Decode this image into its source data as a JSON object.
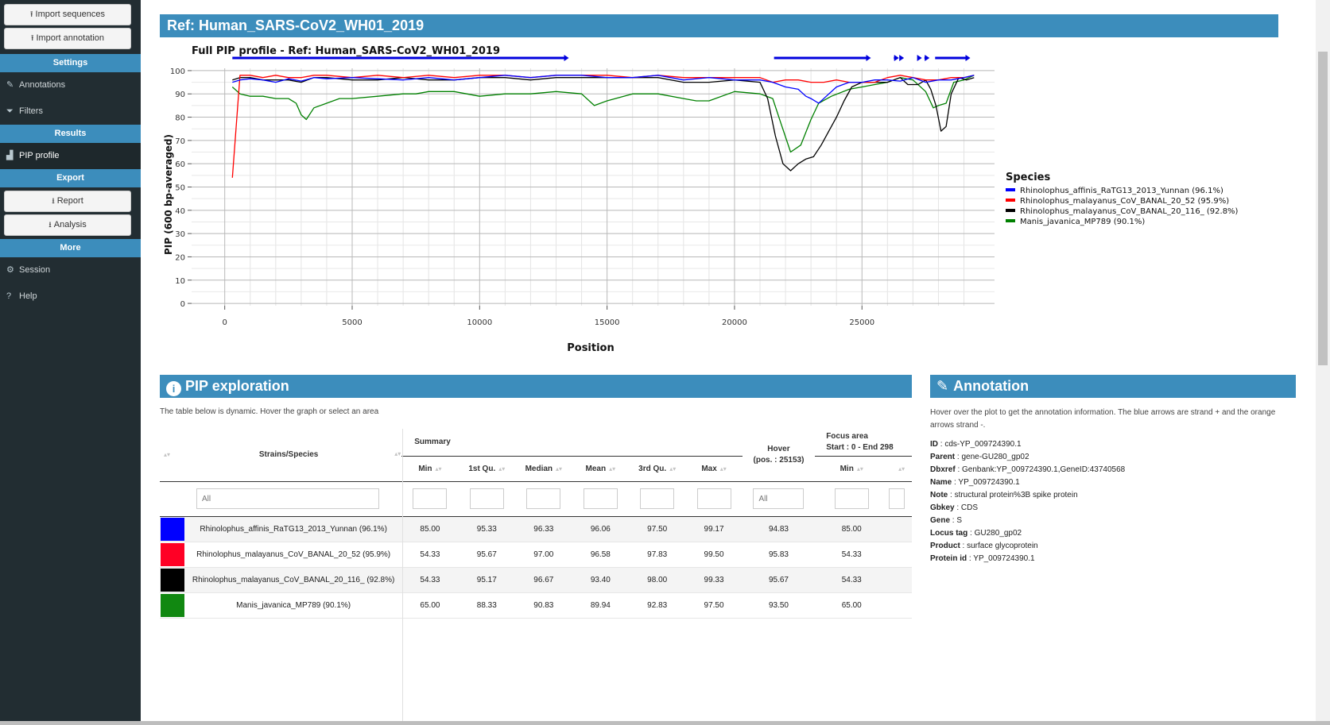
{
  "sidebar": {
    "import_sequences": "Import sequences",
    "import_annotation": "Import annotation",
    "settings_header": "Settings",
    "annotations": "Annotations",
    "filters": "Filters",
    "results_header": "Results",
    "pip_profile": "PIP profile",
    "export_header": "Export",
    "report": "Report",
    "analysis": "Analysis",
    "more_header": "More",
    "session": "Session",
    "help": "Help"
  },
  "ref_title": "Ref: Human_SARS-CoV2_WH01_2019",
  "chart_data": {
    "type": "line",
    "title": "Full PIP profile - Ref: Human_SARS-CoV2_WH01_2019",
    "xlabel": "Position",
    "ylabel": "PIP (600 bp-averaged)",
    "xlim": [
      -1300,
      30200
    ],
    "ylim": [
      -1,
      101
    ],
    "xticks": [
      0,
      5000,
      10000,
      15000,
      20000,
      25000
    ],
    "yticks": [
      0,
      10,
      20,
      30,
      40,
      50,
      60,
      70,
      80,
      90,
      100
    ],
    "grid": true,
    "legend_title": "Species",
    "legend_position": "right",
    "annotation_arrows": [
      [
        300,
        13500
      ],
      [
        21550,
        25350
      ],
      [
        26250,
        26450
      ],
      [
        26550,
        26650
      ],
      [
        27180,
        27350
      ],
      [
        27450,
        27650
      ],
      [
        27870,
        29250
      ]
    ],
    "series": [
      {
        "name": "Rhinolophus_affinis_RaTG13_2013_Yunnan (96.1%)",
        "color": "#0000ff",
        "x": [
          300,
          600,
          1000,
          1500,
          2000,
          2500,
          3000,
          3500,
          4000,
          5000,
          6000,
          7000,
          8000,
          9000,
          10000,
          11000,
          12000,
          13000,
          14000,
          15000,
          16000,
          17000,
          18000,
          19000,
          20000,
          21000,
          21500,
          22000,
          22500,
          22800,
          23000,
          23300,
          23600,
          24000,
          24500,
          25000,
          25500,
          26000,
          26500,
          27000,
          27500,
          28000,
          28500,
          29000,
          29400
        ],
        "y": [
          95,
          96,
          96.5,
          96,
          95,
          96.5,
          95.5,
          97,
          96.5,
          97,
          96.5,
          96,
          97,
          96,
          97,
          98,
          97,
          98,
          98,
          97,
          97,
          98,
          96,
          97,
          96,
          96,
          95,
          93,
          92,
          89,
          88,
          86,
          89,
          93,
          95,
          95,
          96,
          96,
          95.5,
          97,
          95,
          96,
          96,
          97,
          98
        ]
      },
      {
        "name": "Rhinolophus_malayanus_CoV_BANAL_20_52 (95.9%)",
        "color": "#ff0000",
        "x": [
          300,
          600,
          1000,
          1500,
          2000,
          2500,
          3000,
          3500,
          4000,
          5000,
          6000,
          7000,
          8000,
          9000,
          10000,
          11000,
          12000,
          13000,
          14000,
          15000,
          16000,
          17000,
          18000,
          19000,
          20000,
          21000,
          21500,
          22000,
          22500,
          23000,
          23500,
          24000,
          24500,
          25000,
          25500,
          26000,
          26500,
          27000,
          27500,
          28000,
          28500,
          29000,
          29400
        ],
        "y": [
          54,
          98,
          98,
          97,
          98,
          97,
          97,
          98,
          98,
          97,
          98,
          97,
          98,
          97,
          98,
          98,
          97,
          98,
          98,
          98,
          97,
          98,
          97,
          97,
          97,
          97,
          95,
          96,
          96,
          95,
          95,
          96,
          95,
          95,
          95,
          97,
          98,
          97,
          96,
          96,
          97,
          97,
          98
        ]
      },
      {
        "name": "Rhinolophus_malayanus_CoV_BANAL_20_116_ (92.8%)",
        "color": "#000000",
        "x": [
          300,
          600,
          1000,
          1500,
          2000,
          2500,
          3000,
          3500,
          4000,
          5000,
          6000,
          7000,
          8000,
          9000,
          10000,
          11000,
          12000,
          13000,
          14000,
          15000,
          16000,
          17000,
          18000,
          19000,
          20000,
          21000,
          21300,
          21600,
          21900,
          22200,
          22500,
          22800,
          23100,
          23400,
          23700,
          24000,
          24300,
          24600,
          25000,
          25500,
          26000,
          26500,
          26800,
          27200,
          27500,
          27700,
          27900,
          28100,
          28300,
          28500,
          28800,
          29100,
          29400
        ],
        "y": [
          96,
          97,
          97,
          96,
          96,
          96,
          95,
          97,
          97,
          96,
          96,
          97,
          96,
          96,
          97,
          97,
          96,
          97,
          97,
          97,
          97,
          97,
          95,
          95,
          96,
          95,
          88,
          72,
          60,
          57,
          60,
          62,
          63,
          68,
          74,
          80,
          87,
          93,
          95,
          95,
          95,
          97,
          94,
          94,
          96,
          92,
          85,
          74,
          76,
          90,
          97,
          96,
          97
        ]
      },
      {
        "name": "Manis_javanica_MP789 (90.1%)",
        "color": "#008000",
        "x": [
          300,
          600,
          1000,
          1500,
          2000,
          2500,
          2800,
          3000,
          3200,
          3500,
          4000,
          4500,
          5000,
          6000,
          7000,
          7500,
          8000,
          9000,
          10000,
          11000,
          12000,
          13000,
          14000,
          14500,
          15000,
          16000,
          17000,
          18000,
          18500,
          19000,
          20000,
          21000,
          21500,
          21800,
          22200,
          22600,
          23000,
          23300,
          23800,
          24500,
          25000,
          25500,
          26000,
          26500,
          27000,
          27500,
          27800,
          28000,
          28300,
          28600,
          29000,
          29400
        ],
        "y": [
          93,
          90,
          89,
          89,
          88,
          88,
          86,
          81,
          79,
          84,
          86,
          88,
          88,
          89,
          90,
          90,
          91,
          91,
          89,
          90,
          90,
          91,
          90,
          85,
          87,
          90,
          90,
          88,
          87,
          87,
          91,
          90,
          88,
          78,
          65,
          68,
          79,
          86,
          89,
          92,
          93,
          94,
          95,
          97,
          96,
          91,
          84,
          85,
          86,
          95,
          96,
          98
        ]
      }
    ]
  },
  "pip": {
    "title": "PIP exploration",
    "desc": "The table below is dynamic. Hover the graph or select an area",
    "headers": {
      "strains": "Strains/Species",
      "summary": "Summary",
      "hover": "Hover",
      "hover_pos": "(pos. : 25153)",
      "focus": "Focus area",
      "focus_range": "Start : 0 - End 298",
      "min": "Min",
      "q1": "1st Qu.",
      "median": "Median",
      "mean": "Mean",
      "q3": "3rd Qu.",
      "max": "Max",
      "focus_min": "Min"
    },
    "filter_placeholder": "All",
    "rows": [
      {
        "color": "#0000ff",
        "name": "Rhinolophus_affinis_RaTG13_2013_Yunnan (96.1%)",
        "min": "85.00",
        "q1": "95.33",
        "median": "96.33",
        "mean": "96.06",
        "q3": "97.50",
        "max": "99.17",
        "hover": "94.83",
        "fmin": "85.00"
      },
      {
        "color": "#ff0025",
        "name": "Rhinolophus_malayanus_CoV_BANAL_20_52 (95.9%)",
        "min": "54.33",
        "q1": "95.67",
        "median": "97.00",
        "mean": "96.58",
        "q3": "97.83",
        "max": "99.50",
        "hover": "95.83",
        "fmin": "54.33"
      },
      {
        "color": "#000000",
        "name": "Rhinolophus_malayanus_CoV_BANAL_20_116_ (92.8%)",
        "min": "54.33",
        "q1": "95.17",
        "median": "96.67",
        "mean": "93.40",
        "q3": "98.00",
        "max": "99.33",
        "hover": "95.67",
        "fmin": "54.33"
      },
      {
        "color": "#118811",
        "name": "Manis_javanica_MP789 (90.1%)",
        "min": "65.00",
        "q1": "88.33",
        "median": "90.83",
        "mean": "89.94",
        "q3": "92.83",
        "max": "97.50",
        "hover": "93.50",
        "fmin": "65.00"
      }
    ]
  },
  "annotation": {
    "title": "Annotation",
    "desc": "Hover over the plot to get the annotation information. The blue arrows are strand + and the orange arrows strand -.",
    "fields": [
      {
        "k": "ID",
        "v": "cds-YP_009724390.1"
      },
      {
        "k": "Parent",
        "v": "gene-GU280_gp02"
      },
      {
        "k": "Dbxref",
        "v": "Genbank:YP_009724390.1,GeneID:43740568"
      },
      {
        "k": "Name",
        "v": "YP_009724390.1"
      },
      {
        "k": "Note",
        "v": "structural protein%3B spike protein"
      },
      {
        "k": "Gbkey",
        "v": "CDS"
      },
      {
        "k": "Gene",
        "v": "S"
      },
      {
        "k": "Locus tag",
        "v": "GU280_gp02"
      },
      {
        "k": "Product",
        "v": "surface glycoprotein"
      },
      {
        "k": "Protein id",
        "v": "YP_009724390.1"
      }
    ]
  }
}
